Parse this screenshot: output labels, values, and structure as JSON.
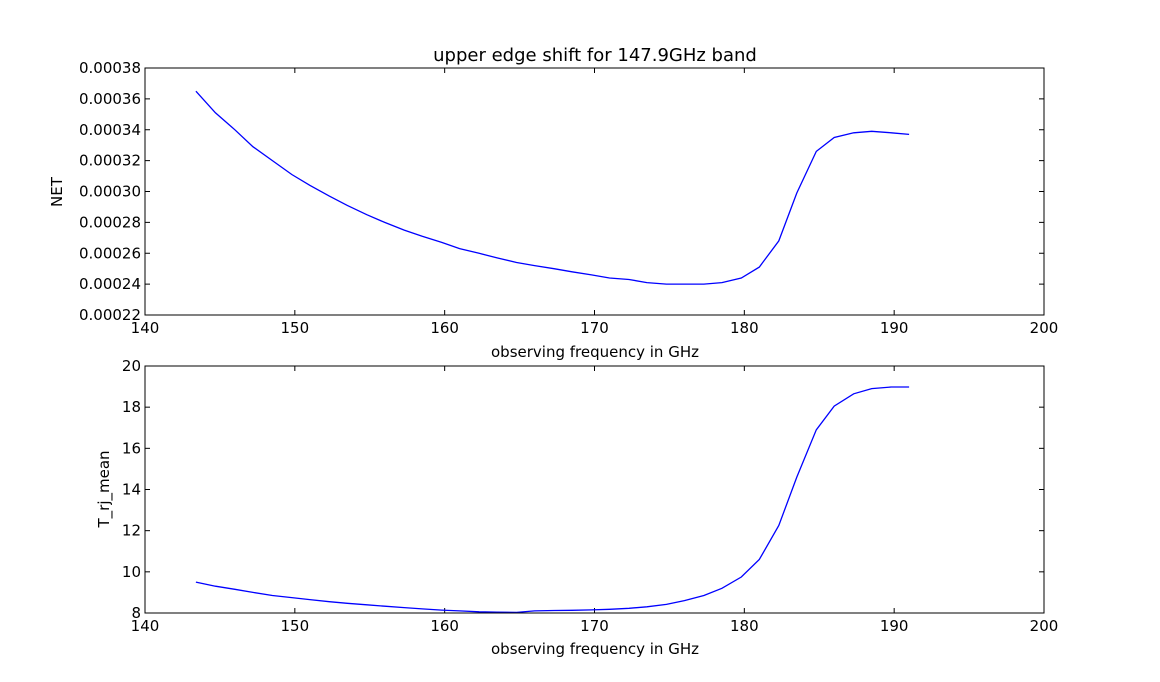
{
  "title": "upper edge shift for 147.9GHz band",
  "colors": {
    "line": "#0000ff",
    "frame": "#000000",
    "background": "#ffffff"
  },
  "chart_data": [
    {
      "type": "line",
      "title": "upper edge shift for 147.9GHz band",
      "xlabel": "observing frequency in GHz",
      "ylabel": "NET",
      "xlim": [
        140,
        200
      ],
      "ylim": [
        0.00022,
        0.00038
      ],
      "xticks": [
        "140",
        "150",
        "160",
        "170",
        "180",
        "190",
        "200"
      ],
      "yticks": [
        "0.00022",
        "0.00024",
        "0.00026",
        "0.00028",
        "0.00030",
        "0.00032",
        "0.00034",
        "0.00036",
        "0.00038"
      ],
      "grid": false,
      "x": [
        143.4,
        144.7,
        146.0,
        147.2,
        148.5,
        149.8,
        151.0,
        152.3,
        153.5,
        154.8,
        156.0,
        157.3,
        158.5,
        159.8,
        161.0,
        162.3,
        163.5,
        164.8,
        166.0,
        167.3,
        168.5,
        169.8,
        171.0,
        172.3,
        173.5,
        174.8,
        176.0,
        177.3,
        178.5,
        179.8,
        181.0,
        182.3,
        183.5,
        184.8,
        186.0,
        187.3,
        188.5,
        189.8,
        191.0
      ],
      "series": [
        {
          "values": [
            0.000365,
            0.000351,
            0.00034,
            0.000329,
            0.00032,
            0.000311,
            0.000304,
            0.000297,
            0.000291,
            0.000285,
            0.00028,
            0.000275,
            0.000271,
            0.000267,
            0.000263,
            0.00026,
            0.000257,
            0.000254,
            0.000252,
            0.00025,
            0.000248,
            0.000246,
            0.000244,
            0.000243,
            0.000241,
            0.00024,
            0.00024,
            0.00024,
            0.000241,
            0.000244,
            0.000251,
            0.000268,
            0.000299,
            0.000326,
            0.000335,
            0.000338,
            0.000339,
            0.000338,
            0.000337
          ]
        }
      ]
    },
    {
      "type": "line",
      "xlabel": "observing frequency in GHz",
      "ylabel": "T_rj_mean",
      "xlim": [
        140,
        200
      ],
      "ylim": [
        8,
        20
      ],
      "xticks": [
        "140",
        "150",
        "160",
        "170",
        "180",
        "190",
        "200"
      ],
      "yticks": [
        "8",
        "10",
        "12",
        "14",
        "16",
        "18",
        "20"
      ],
      "grid": false,
      "x": [
        143.4,
        144.7,
        146.0,
        147.2,
        148.5,
        149.8,
        151.0,
        152.3,
        153.5,
        154.8,
        156.0,
        157.3,
        158.5,
        159.8,
        161.0,
        162.3,
        163.5,
        164.8,
        166.0,
        167.3,
        168.5,
        169.8,
        171.0,
        172.3,
        173.5,
        174.8,
        176.0,
        177.3,
        178.5,
        179.8,
        181.0,
        182.3,
        183.5,
        184.8,
        186.0,
        187.3,
        188.5,
        189.8,
        191.0
      ],
      "series": [
        {
          "values": [
            9.5,
            9.3,
            9.15,
            9.0,
            8.85,
            8.75,
            8.65,
            8.55,
            8.47,
            8.4,
            8.33,
            8.26,
            8.2,
            8.14,
            8.1,
            8.06,
            8.04,
            8.03,
            8.1,
            8.12,
            8.13,
            8.15,
            8.18,
            8.23,
            8.3,
            8.42,
            8.6,
            8.85,
            9.2,
            9.75,
            10.6,
            12.25,
            14.6,
            16.9,
            18.05,
            18.65,
            18.9,
            18.98,
            18.98
          ]
        }
      ]
    }
  ]
}
